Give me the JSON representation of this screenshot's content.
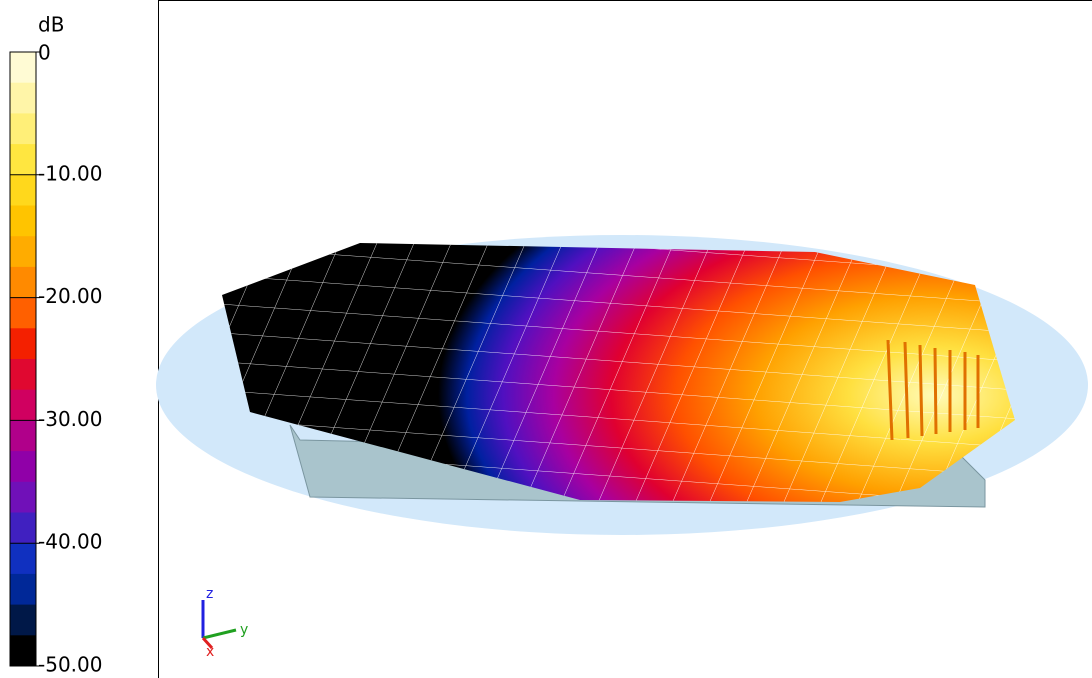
{
  "colorbar": {
    "unit": "dB",
    "tick_labels": [
      "0",
      "-10.00",
      "-20.00",
      "-30.00",
      "-40.00",
      "-50.00"
    ],
    "segment_colors": [
      "#fffbd4",
      "#fff5a8",
      "#ffef78",
      "#ffe640",
      "#ffd81c",
      "#ffc400",
      "#ffac00",
      "#ff8a00",
      "#ff6000",
      "#f42000",
      "#e00830",
      "#d00060",
      "#b0008a",
      "#9000a8",
      "#7010b8",
      "#4020c0",
      "#1030c0",
      "#002898",
      "#001848",
      "#000000"
    ]
  },
  "axes_triad": {
    "z": "z",
    "y": "y",
    "x": "x"
  }
}
